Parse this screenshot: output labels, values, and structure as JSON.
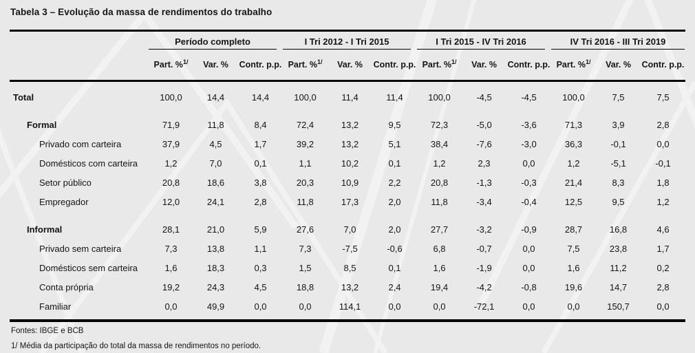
{
  "title": "Tabela 3 – Evolução da massa de rendimentos do trabalho",
  "table": {
    "groups": [
      {
        "label": "Período completo"
      },
      {
        "label": "I Tri 2012 - I Tri 2015"
      },
      {
        "label": "I Tri 2015 - IV Tri 2016"
      },
      {
        "label": "IV Tri 2016 - III Tri 2019"
      }
    ],
    "subheaders": {
      "part": "Part. %",
      "part_sup": "1/",
      "var": "Var. %",
      "contr": "Contr. p.p."
    },
    "rows": [
      {
        "label": "Total",
        "level": 0,
        "bold": true,
        "section_start": false,
        "values": [
          "100,0",
          "14,4",
          "14,4",
          "100,0",
          "11,4",
          "11,4",
          "100,0",
          "-4,5",
          "-4,5",
          "100,0",
          "7,5",
          "7,5"
        ]
      },
      {
        "label": "Formal",
        "level": 1,
        "bold": true,
        "section_start": true,
        "values": [
          "71,9",
          "11,8",
          "8,4",
          "72,4",
          "13,2",
          "9,5",
          "72,3",
          "-5,0",
          "-3,6",
          "71,3",
          "3,9",
          "2,8"
        ]
      },
      {
        "label": "Privado com carteira",
        "level": 2,
        "bold": false,
        "section_start": false,
        "values": [
          "37,9",
          "4,5",
          "1,7",
          "39,2",
          "13,2",
          "5,1",
          "38,4",
          "-7,6",
          "-3,0",
          "36,3",
          "-0,1",
          "0,0"
        ]
      },
      {
        "label": "Domésticos com carteira",
        "level": 2,
        "bold": false,
        "section_start": false,
        "values": [
          "1,2",
          "7,0",
          "0,1",
          "1,1",
          "10,2",
          "0,1",
          "1,2",
          "2,3",
          "0,0",
          "1,2",
          "-5,1",
          "-0,1"
        ]
      },
      {
        "label": "Setor público",
        "level": 2,
        "bold": false,
        "section_start": false,
        "values": [
          "20,8",
          "18,6",
          "3,8",
          "20,3",
          "10,9",
          "2,2",
          "20,8",
          "-1,3",
          "-0,3",
          "21,4",
          "8,3",
          "1,8"
        ]
      },
      {
        "label": "Empregador",
        "level": 2,
        "bold": false,
        "section_start": false,
        "values": [
          "12,0",
          "24,1",
          "2,8",
          "11,8",
          "17,3",
          "2,0",
          "11,8",
          "-3,4",
          "-0,4",
          "12,5",
          "9,5",
          "1,2"
        ]
      },
      {
        "label": "Informal",
        "level": 1,
        "bold": true,
        "section_start": true,
        "values": [
          "28,1",
          "21,0",
          "5,9",
          "27,6",
          "7,0",
          "2,0",
          "27,7",
          "-3,2",
          "-0,9",
          "28,7",
          "16,8",
          "4,6"
        ]
      },
      {
        "label": "Privado sem carteira",
        "level": 2,
        "bold": false,
        "section_start": false,
        "values": [
          "7,3",
          "13,8",
          "1,1",
          "7,3",
          "-7,5",
          "-0,6",
          "6,8",
          "-0,7",
          "0,0",
          "7,5",
          "23,8",
          "1,7"
        ]
      },
      {
        "label": "Domésticos sem carteira",
        "level": 2,
        "bold": false,
        "section_start": false,
        "values": [
          "1,6",
          "18,3",
          "0,3",
          "1,5",
          "8,5",
          "0,1",
          "1,6",
          "-1,9",
          "0,0",
          "1,6",
          "11,2",
          "0,2"
        ]
      },
      {
        "label": "Conta própria",
        "level": 2,
        "bold": false,
        "section_start": false,
        "values": [
          "19,2",
          "24,3",
          "4,5",
          "18,8",
          "13,2",
          "2,4",
          "19,4",
          "-4,2",
          "-0,8",
          "19,6",
          "14,7",
          "2,8"
        ]
      },
      {
        "label": "Familiar",
        "level": 2,
        "bold": false,
        "section_start": false,
        "values": [
          "0,0",
          "49,9",
          "0,0",
          "0,0",
          "114,1",
          "0,0",
          "0,0",
          "-72,1",
          "0,0",
          "0,0",
          "150,7",
          "0,0"
        ]
      }
    ]
  },
  "footer": {
    "sources": "Fontes: IBGE e BCB",
    "footnote": "1/ Média da participação do total da massa de rendimentos no período."
  },
  "colors": {
    "background": "#e9e9e9",
    "text": "#141414",
    "border": "#000000"
  }
}
